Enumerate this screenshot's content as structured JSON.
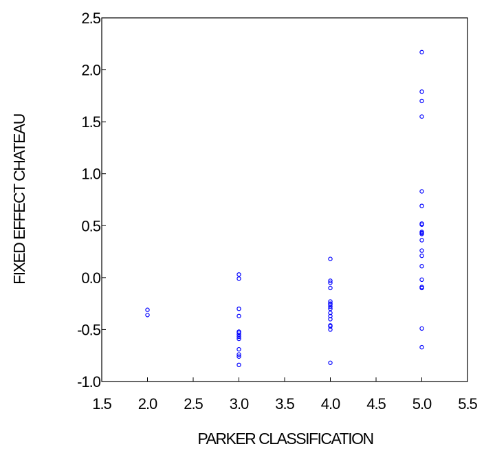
{
  "chart_data": {
    "type": "scatter",
    "xlabel": "PARKER CLASSIFICATION",
    "ylabel": "FIXED EFFECT CHATEAU",
    "xlim": [
      1.5,
      5.5
    ],
    "ylim": [
      -1.0,
      2.5
    ],
    "xticks": [
      1.5,
      2.0,
      2.5,
      3.0,
      3.5,
      4.0,
      4.5,
      5.0,
      5.5
    ],
    "xtick_labels": [
      "1.5",
      "2.0",
      "2.5",
      "3.0",
      "3.5",
      "4.0",
      "4.5",
      "5.0",
      "5.5"
    ],
    "yticks": [
      -1.0,
      -0.5,
      0.0,
      0.5,
      1.0,
      1.5,
      2.0,
      2.5
    ],
    "ytick_labels": [
      "-1.0",
      "-0.5",
      "0.0",
      "0.5",
      "1.0",
      "1.5",
      "2.0",
      "2.5"
    ],
    "grid": false,
    "marker_color": "#0000ff",
    "series": [
      {
        "x": [
          2.0,
          2.0,
          3.0,
          3.0,
          3.0,
          3.0,
          3.0,
          3.0,
          3.0,
          3.0,
          3.0,
          3.0,
          3.0,
          3.0,
          3.0,
          4.0,
          4.0,
          4.0,
          4.0,
          4.0,
          4.0,
          4.0,
          4.0,
          4.0,
          4.0,
          4.0,
          4.0,
          4.0,
          4.0,
          4.0,
          4.0,
          5.0,
          5.0,
          5.0,
          5.0,
          5.0,
          5.0,
          5.0,
          5.0,
          5.0,
          5.0,
          5.0,
          5.0,
          5.0,
          5.0,
          5.0,
          5.0,
          5.0,
          5.0,
          5.0,
          5.0
        ],
        "y": [
          -0.31,
          -0.36,
          0.03,
          -0.01,
          -0.3,
          -0.37,
          -0.52,
          -0.55,
          -0.57,
          -0.59,
          -0.69,
          -0.74,
          -0.76,
          -0.84,
          -0.53,
          0.18,
          -0.03,
          -0.05,
          -0.1,
          -0.23,
          -0.26,
          -0.28,
          -0.3,
          -0.34,
          -0.37,
          -0.4,
          -0.46,
          -0.47,
          -0.5,
          -0.82,
          -0.25,
          2.17,
          1.79,
          1.7,
          1.55,
          0.83,
          0.69,
          0.52,
          0.51,
          0.44,
          0.42,
          0.36,
          0.26,
          0.21,
          0.11,
          -0.02,
          -0.09,
          -0.1,
          -0.49,
          -0.67,
          0.43
        ]
      }
    ]
  }
}
